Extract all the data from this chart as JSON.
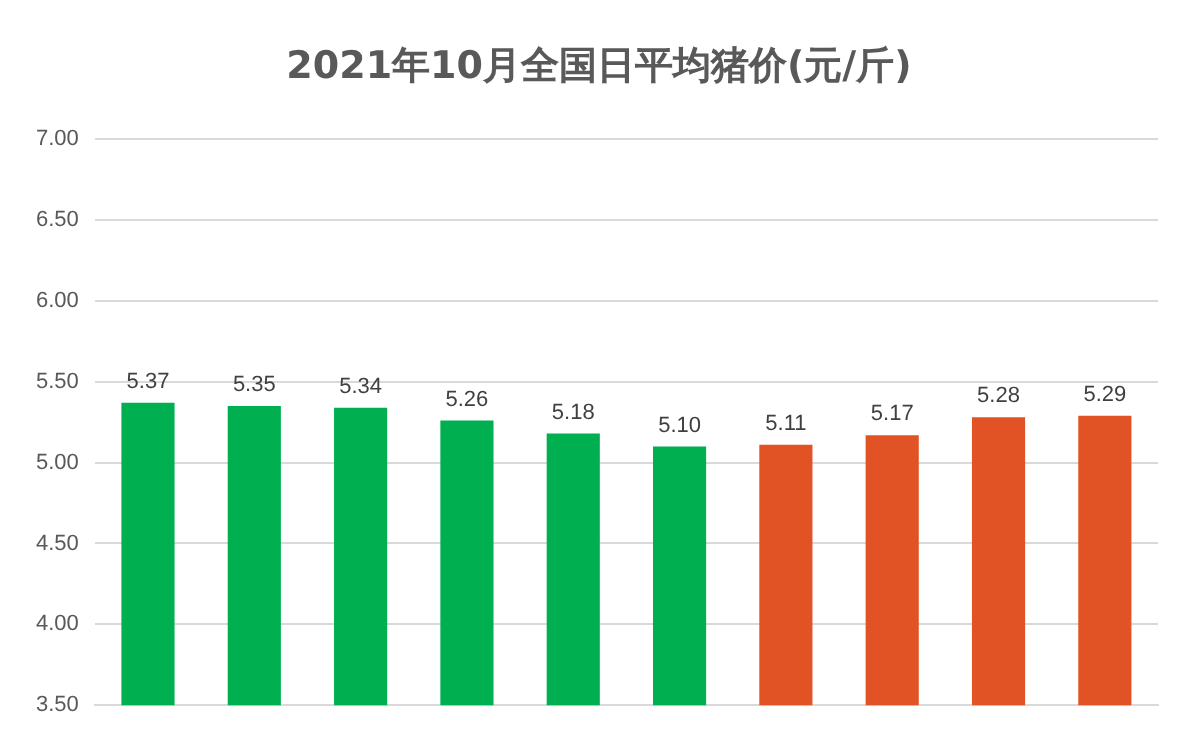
{
  "chart_data": {
    "type": "bar",
    "title": "2021年10月全国日平均猪价(元/斤)",
    "categories": [
      null,
      null,
      null,
      null,
      null,
      null,
      null,
      null,
      null,
      null
    ],
    "values": [
      5.37,
      5.35,
      5.34,
      5.26,
      5.18,
      5.1,
      5.11,
      5.17,
      5.28,
      5.29
    ],
    "colors": [
      "#00b050",
      "#00b050",
      "#00b050",
      "#00b050",
      "#00b050",
      "#00b050",
      "#e15325",
      "#e15325",
      "#e15325",
      "#e15325"
    ],
    "value_labels": [
      "5.37",
      "5.35",
      "5.34",
      "5.26",
      "5.18",
      "5.10",
      "5.11",
      "5.17",
      "5.28",
      "5.29"
    ],
    "ylim": [
      3.5,
      7
    ],
    "yticks": [
      {
        "value": 3.5,
        "label": "3.50"
      },
      {
        "value": 4,
        "label": "4.00"
      },
      {
        "value": 4.5,
        "label": "4.50"
      },
      {
        "value": 5,
        "label": "5.00"
      },
      {
        "value": 5.5,
        "label": "5.50"
      },
      {
        "value": 6,
        "label": "6.00"
      },
      {
        "value": 6.5,
        "label": "6.50"
      },
      {
        "value": 7,
        "label": "7.00"
      }
    ],
    "grid": "y",
    "legend": false
  }
}
